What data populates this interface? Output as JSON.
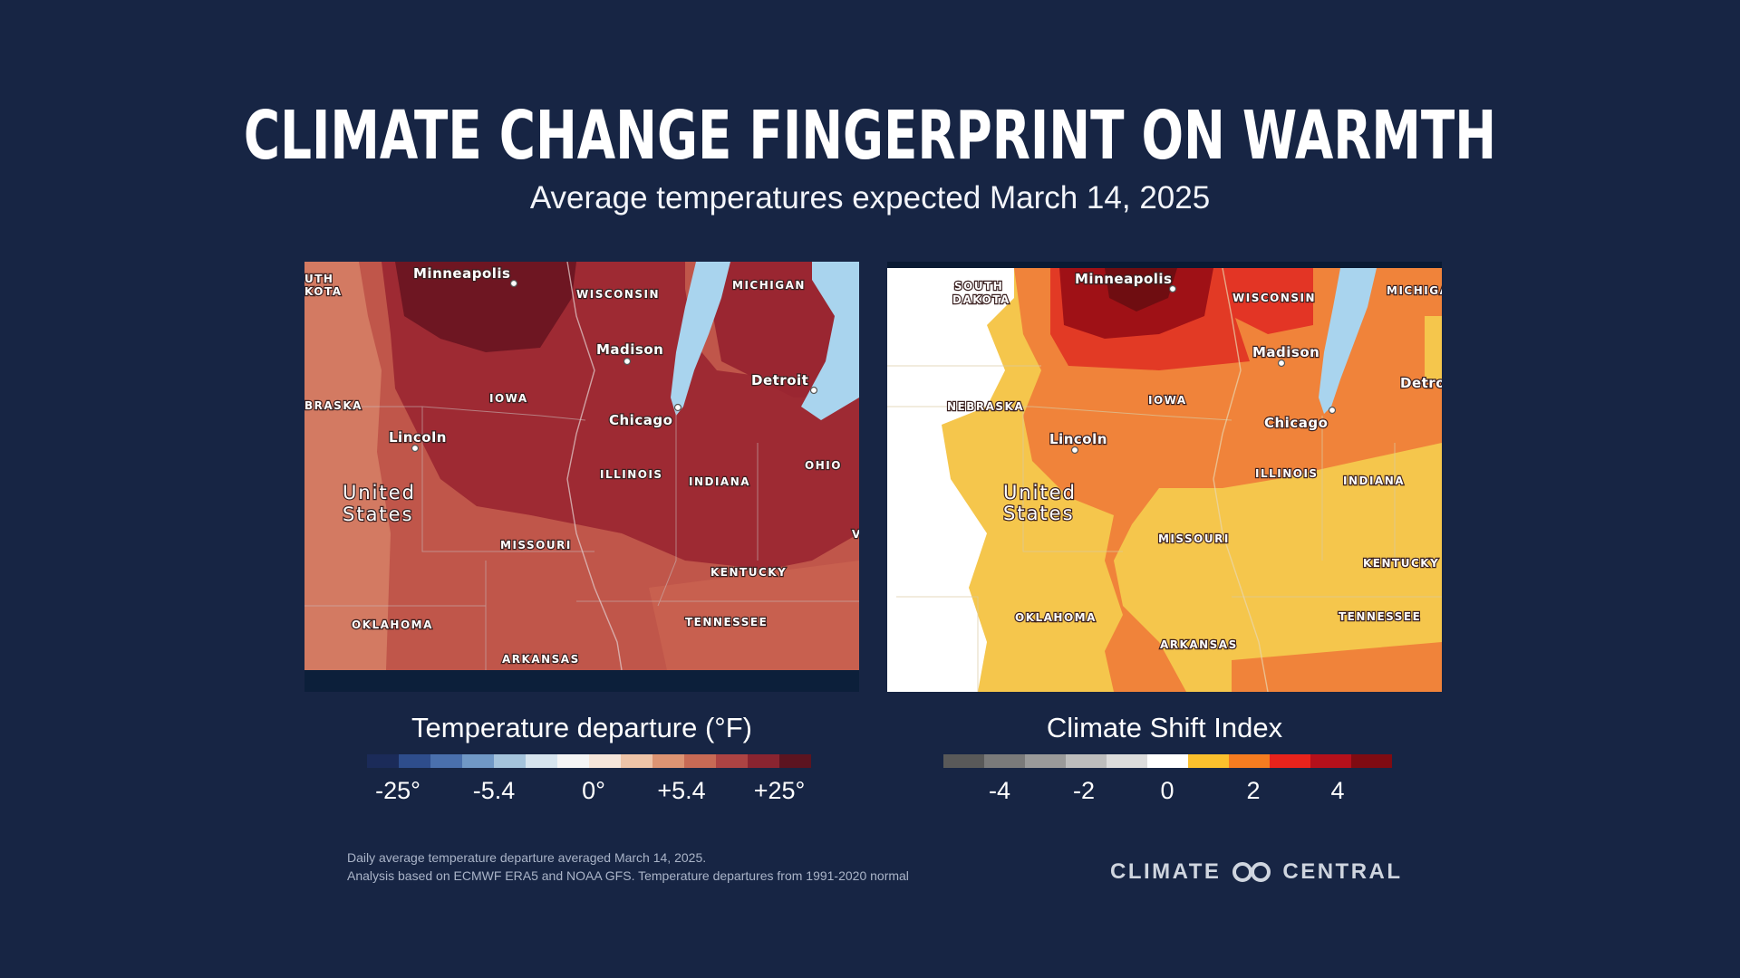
{
  "title": "CLIMATE CHANGE FINGERPRINT ON WARMTH",
  "subtitle": "Average temperatures expected March 14, 2025",
  "left_map": {
    "labels": {
      "south_dakota": "UTH\nKOTA",
      "minneapolis": "Minneapolis",
      "wisconsin": "WISCONSIN",
      "michigan": "MICHIGAN",
      "madison": "Madison",
      "detroit": "Detroit",
      "nebraska": "BRASKA",
      "iowa": "IOWA",
      "chicago": "Chicago",
      "lincoln": "Lincoln",
      "ohio": "OHIO",
      "illinois": "ILLINOIS",
      "indiana": "INDIANA",
      "united": "United",
      "states": "States",
      "missouri": "MISSOURI",
      "kentucky": "KENTUCKY",
      "oklahoma": "OKLAHOMA",
      "tennessee": "TENNESSEE",
      "arkansas": "ARKANSAS",
      "virginia_edge": "V"
    }
  },
  "right_map": {
    "labels": {
      "south": "SOUTH",
      "dakota": "DAKOTA",
      "minneapolis": "Minneapolis",
      "wisconsin": "WISCONSIN",
      "michigan": "MICHIGA",
      "madison": "Madison",
      "detroit": "Detro",
      "nebraska": "NEBRASKA",
      "iowa": "IOWA",
      "chicago": "Chicago",
      "lincoln": "Lincoln",
      "illinois": "ILLINOIS",
      "indiana": "INDIANA",
      "united": "United",
      "states": "States",
      "missouri": "MISSOURI",
      "kentucky": "KENTUCKY",
      "oklahoma": "OKLAHOMA",
      "tennessee": "TENNESSEE",
      "arkansas": "ARKANSAS"
    }
  },
  "legend_left": {
    "title": "Temperature departure (°F)",
    "colors": [
      "#1b2b59",
      "#2e4d8c",
      "#4a70ad",
      "#7098c6",
      "#a4c3dc",
      "#d6e4ef",
      "#f4f5f6",
      "#f5e6db",
      "#eec4a8",
      "#dd9473",
      "#c86a55",
      "#ad4343",
      "#8a2430",
      "#5c1420"
    ],
    "ticks": [
      "-25°",
      "-5.4",
      "0°",
      "+5.4",
      "+25°"
    ]
  },
  "legend_right": {
    "title": "Climate Shift Index",
    "colors": [
      "#595959",
      "#7a7a7a",
      "#9a9a9a",
      "#bdbdbd",
      "#dcdcdc",
      "#ffffff",
      "#fbc02d",
      "#f57c20",
      "#e8231c",
      "#b5101b",
      "#7f0b12"
    ],
    "ticks": [
      "-4",
      "-2",
      "0",
      "2",
      "4"
    ]
  },
  "footnote": {
    "line1": "Daily average temperature departure averaged  March 14, 2025.",
    "line2": "Analysis based on ECMWF ERA5 and NOAA GFS. Temperature departures from 1991-2020 normal"
  },
  "logo": {
    "left": "CLIMATE",
    "right": "CENTRAL"
  }
}
